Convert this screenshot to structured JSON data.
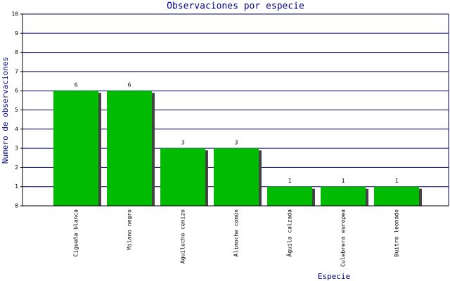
{
  "chart_data": {
    "type": "bar",
    "title": "Observaciones por especie",
    "x_label": "Especie",
    "y_label": "Numero de observaciones",
    "categories": [
      "Cigueña blanca",
      "Milano negro",
      "Aguilucho cenizo",
      "Alimoche común",
      "Águila calzada",
      "Culebrera europea",
      "Buitre leonado"
    ],
    "values": [
      6,
      6,
      3,
      3,
      1,
      1,
      1
    ],
    "color": "#00bb00",
    "shadow_color": "#444444",
    "ylim": [
      0,
      10
    ],
    "yticks": [
      0,
      1,
      2,
      3,
      4,
      5,
      6,
      7,
      8,
      9,
      10
    ],
    "grid": true,
    "grid_color": "#000066"
  }
}
